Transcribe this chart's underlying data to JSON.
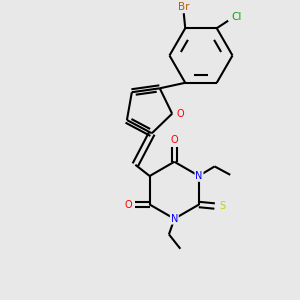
{
  "bg_color": "#e8e8e8",
  "bond_color": "#000000",
  "bond_width": 1.5,
  "atom_colors": {
    "O": "#ff0000",
    "N": "#0000ff",
    "S": "#cccc00",
    "Br": "#b85c00",
    "Cl": "#00aa00",
    "C": "#000000"
  },
  "font_size": 7.0
}
